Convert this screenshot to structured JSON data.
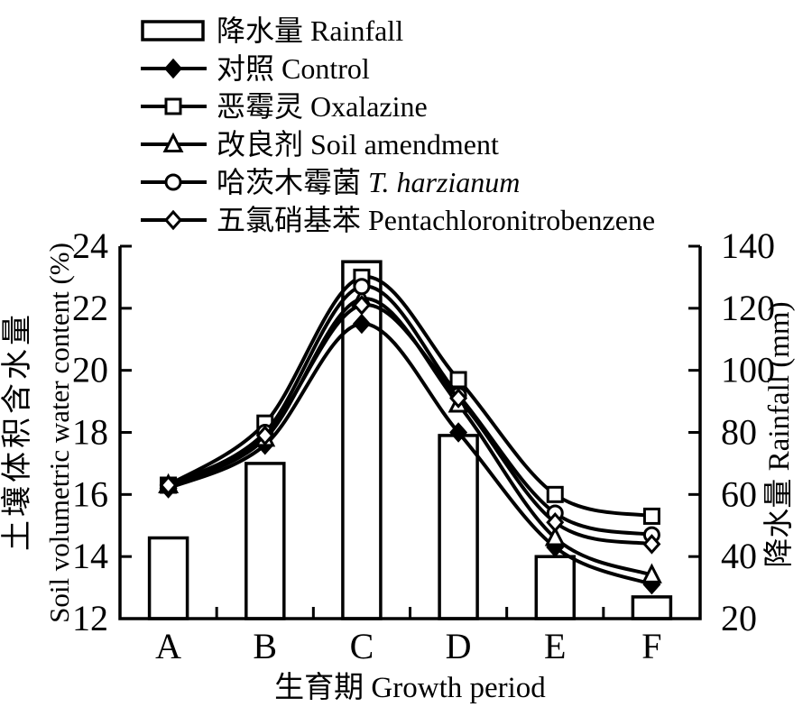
{
  "chart_data": {
    "type": "bar+line combo",
    "categories": [
      "A",
      "B",
      "C",
      "D",
      "E",
      "F"
    ],
    "x_axis": {
      "title": "生育期 Growth period"
    },
    "left_axis": {
      "title_cn": "土壤体积含水量",
      "title_en": "Soil volumetric water content (%)",
      "min": 12,
      "max": 24,
      "ticks": [
        12,
        14,
        16,
        18,
        20,
        22,
        24
      ]
    },
    "right_axis": {
      "title": "降水量 Rainfall (mm)",
      "min": 20,
      "max": 140,
      "ticks": [
        20,
        40,
        60,
        80,
        100,
        120,
        140
      ]
    },
    "bars": {
      "name": "降水量 Rainfall",
      "axis": "right",
      "values": [
        46,
        70,
        135,
        79,
        40,
        27
      ]
    },
    "series": [
      {
        "name": "对照 Control",
        "marker": "diamond-filled",
        "axis": "left",
        "values": [
          16.2,
          17.6,
          21.5,
          18.0,
          14.3,
          13.1
        ]
      },
      {
        "name": "恶霉灵 Oxalazine",
        "marker": "square-open",
        "axis": "left",
        "values": [
          16.3,
          18.3,
          23.0,
          19.7,
          16.0,
          15.3
        ]
      },
      {
        "name": "改良剂 Soil amendment",
        "marker": "triangle-open",
        "axis": "left",
        "values": [
          16.3,
          17.8,
          22.3,
          18.9,
          14.6,
          13.4
        ]
      },
      {
        "name": "哈茨木霉菌 T. harzianum",
        "marker": "circle-open",
        "axis": "left",
        "values": [
          16.3,
          18.0,
          22.7,
          19.2,
          15.4,
          14.7
        ]
      },
      {
        "name": "五氯硝基苯 Pentachloronitrobenzene",
        "marker": "diamond-open",
        "axis": "left",
        "values": [
          16.3,
          17.9,
          22.1,
          19.1,
          15.1,
          14.4
        ]
      }
    ],
    "legend": {
      "position": "top-left",
      "entries": [
        {
          "swatch": "bar",
          "label": "降水量 Rainfall"
        },
        {
          "swatch": "diamond-filled",
          "label": "对照 Control"
        },
        {
          "swatch": "square-open",
          "label": "恶霉灵 Oxalazine"
        },
        {
          "swatch": "triangle-open",
          "label": "改良剂 Soil amendment"
        },
        {
          "swatch": "circle-open",
          "label": "哈茨木霉菌 ",
          "label_italic": "T. harzianum"
        },
        {
          "swatch": "diamond-open",
          "label": "五氯硝基苯 Pentachloronitrobenzene"
        }
      ]
    },
    "grid": false,
    "colors": {
      "stroke": "#000000",
      "fill": "#ffffff",
      "background": "#ffffff"
    }
  }
}
